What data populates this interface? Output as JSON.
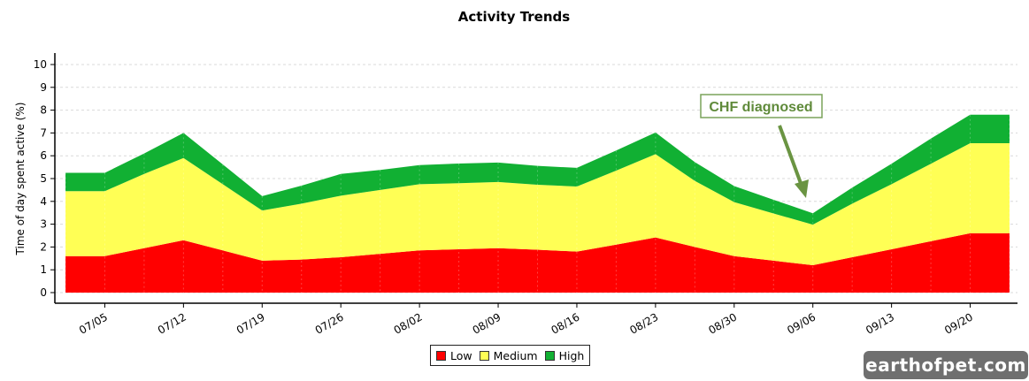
{
  "chart_data": {
    "type": "area",
    "stacked": true,
    "title": "Activity Trends",
    "xlabel": "",
    "ylabel": "Time of day spent active (%)",
    "ylim": [
      0,
      10.5
    ],
    "yticks": [
      0,
      1,
      2,
      3,
      4,
      5,
      6,
      7,
      8,
      9,
      10
    ],
    "x": [
      "07/01",
      "07/05",
      "07/08",
      "07/12",
      "07/15",
      "07/19",
      "07/22",
      "07/26",
      "07/29",
      "08/02",
      "08/05",
      "08/09",
      "08/12",
      "08/16",
      "08/19",
      "08/23",
      "08/26",
      "08/30",
      "09/02",
      "09/06",
      "09/09",
      "09/13",
      "09/16",
      "09/20",
      "09/23"
    ],
    "xtick_labels": [
      "07/05",
      "07/12",
      "07/19",
      "07/26",
      "08/02",
      "08/09",
      "08/16",
      "08/23",
      "08/30",
      "09/06",
      "09/13",
      "09/20"
    ],
    "series": [
      {
        "name": "Low",
        "color": "#ff0000",
        "values": [
          1.6,
          1.6,
          1.95,
          2.3,
          1.85,
          1.4,
          1.45,
          1.55,
          1.7,
          1.85,
          1.9,
          1.95,
          1.88,
          1.8,
          2.1,
          2.42,
          2.0,
          1.6,
          1.4,
          1.2,
          1.55,
          1.9,
          2.25,
          2.6,
          2.6
        ]
      },
      {
        "name": "Medium",
        "color": "#ffff55",
        "values": [
          2.85,
          2.85,
          3.25,
          3.6,
          2.9,
          2.2,
          2.45,
          2.7,
          2.8,
          2.9,
          2.9,
          2.9,
          2.85,
          2.85,
          3.25,
          3.65,
          2.9,
          2.37,
          2.07,
          1.78,
          2.35,
          2.85,
          3.4,
          3.95,
          3.95
        ]
      },
      {
        "name": "High",
        "color": "#11b033",
        "values": [
          0.8,
          0.8,
          0.9,
          1.1,
          0.87,
          0.63,
          0.79,
          0.95,
          0.88,
          0.84,
          0.86,
          0.85,
          0.83,
          0.82,
          0.88,
          0.95,
          0.82,
          0.7,
          0.6,
          0.5,
          0.7,
          0.9,
          1.1,
          1.25,
          1.25
        ]
      }
    ],
    "legend": {
      "placement": "bottom-center",
      "entries": [
        "Low",
        "Medium",
        "High"
      ]
    },
    "grid": {
      "y": true,
      "x": true,
      "style": "dashed"
    },
    "annotation": {
      "text": "CHF diagnosed",
      "points_to_x": "09/06",
      "points_to_y": 4.2,
      "color": "#5f8a3a"
    }
  },
  "watermark": "earthofpet.com"
}
